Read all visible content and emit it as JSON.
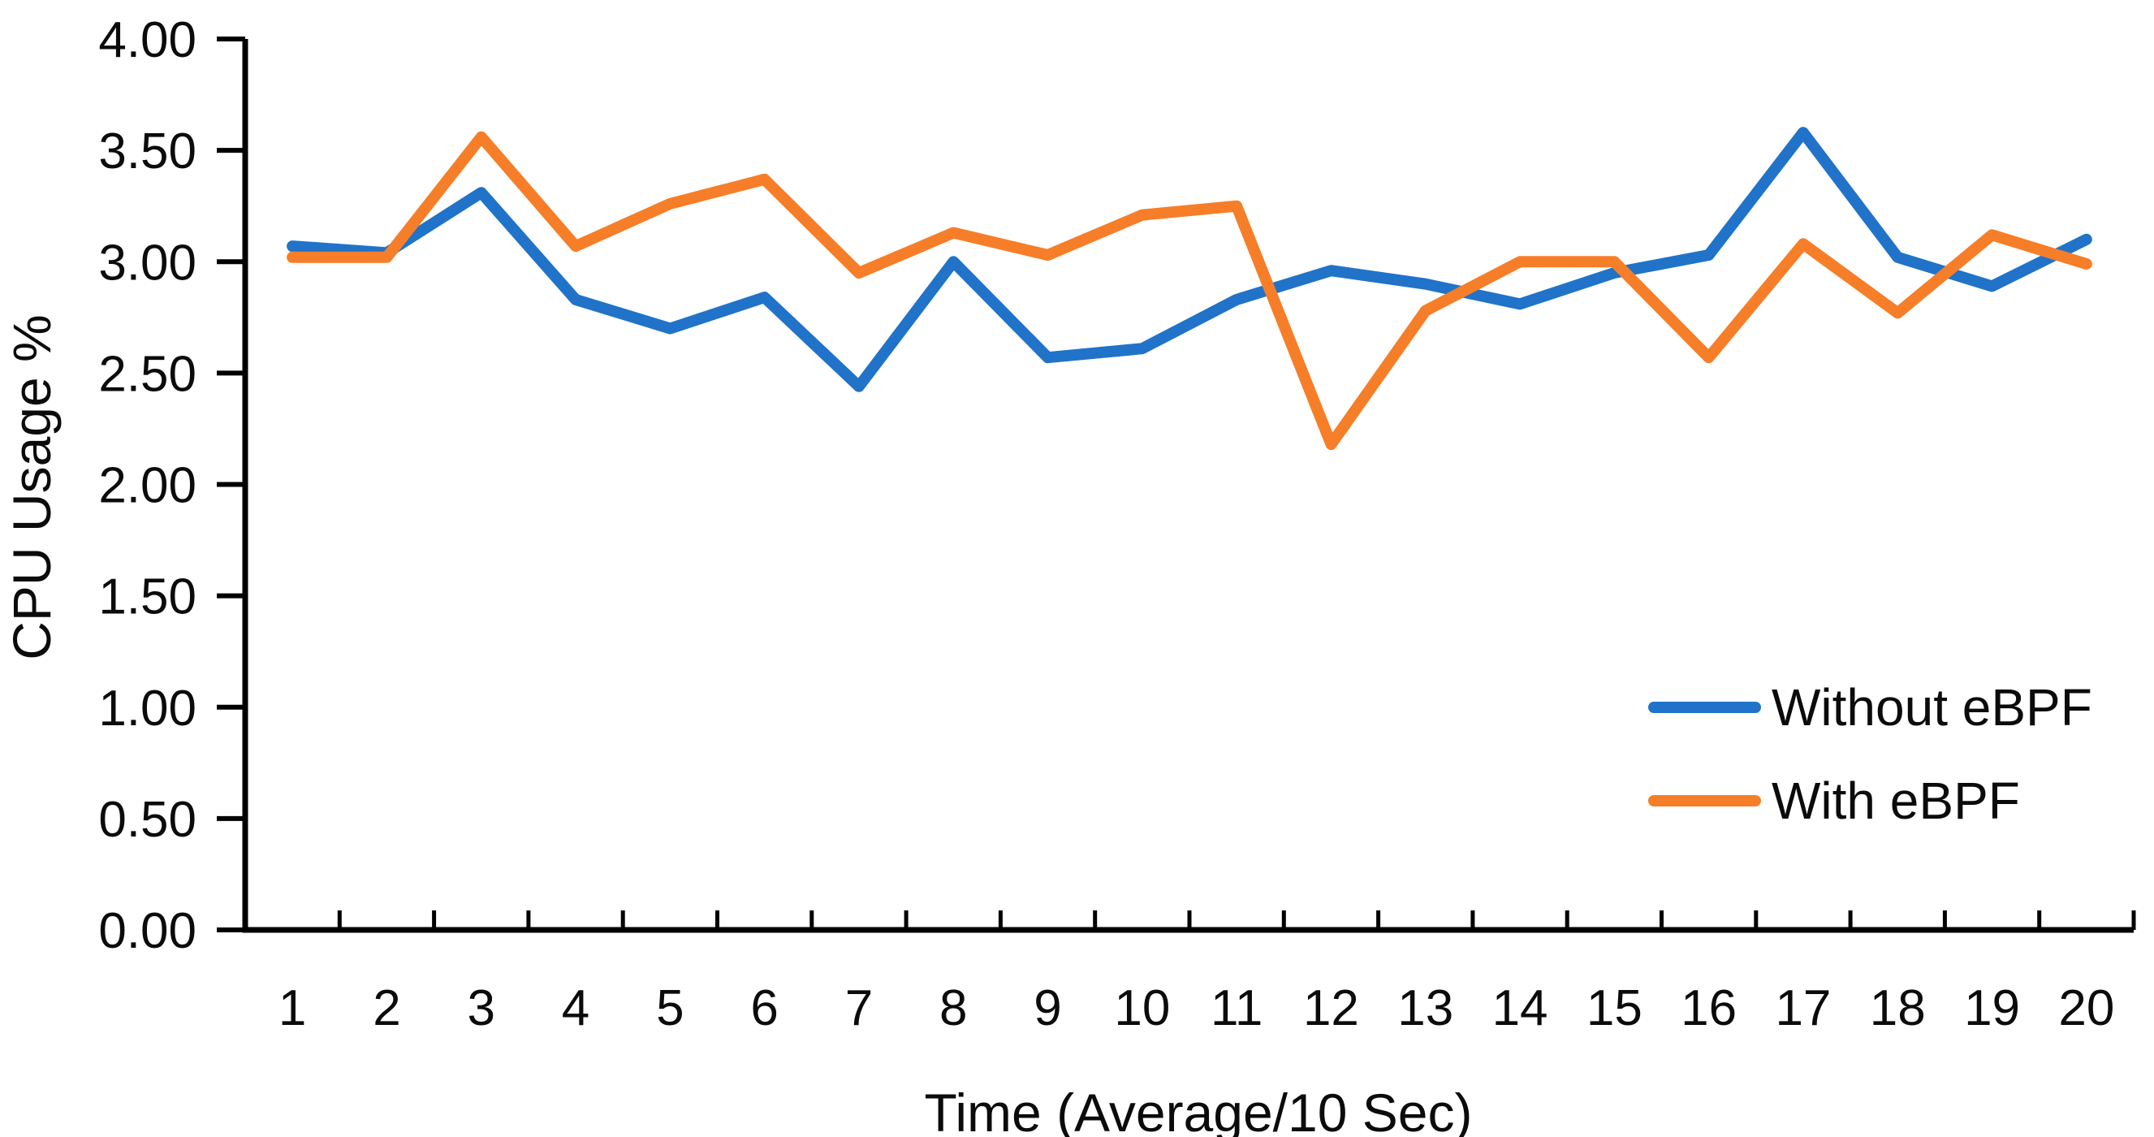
{
  "page": {
    "background": "#ffffff",
    "text_color": "#0b0b0b",
    "axis_color": "#000000"
  },
  "chart_data": {
    "type": "line",
    "title": "",
    "xlabel": "Time (Average/10 Sec)",
    "ylabel": "CPU Usage %",
    "categories": [
      "1",
      "2",
      "3",
      "4",
      "5",
      "6",
      "7",
      "8",
      "9",
      "10",
      "11",
      "12",
      "13",
      "14",
      "15",
      "16",
      "17",
      "18",
      "19",
      "20"
    ],
    "ylim": [
      0,
      4
    ],
    "ytick_step": 0.5,
    "y_tick_labels": [
      "0.00",
      "0.50",
      "1.00",
      "1.50",
      "2.00",
      "2.50",
      "3.00",
      "3.50",
      "4.00"
    ],
    "grid": false,
    "legend_position": "inside-right-middle",
    "series": [
      {
        "name": "Without eBPF",
        "color": "#2073C8",
        "values": [
          3.07,
          3.04,
          3.31,
          2.83,
          2.7,
          2.84,
          2.44,
          3.0,
          2.57,
          2.61,
          2.83,
          2.96,
          2.9,
          2.81,
          2.95,
          3.03,
          3.58,
          3.02,
          2.89,
          3.1
        ]
      },
      {
        "name": "With eBPF",
        "color": "#F67E28",
        "values": [
          3.02,
          3.02,
          3.56,
          3.07,
          3.26,
          3.37,
          2.95,
          3.13,
          3.03,
          3.21,
          3.25,
          2.18,
          2.78,
          3.0,
          3.0,
          2.57,
          3.08,
          2.77,
          3.12,
          2.99
        ]
      }
    ]
  }
}
